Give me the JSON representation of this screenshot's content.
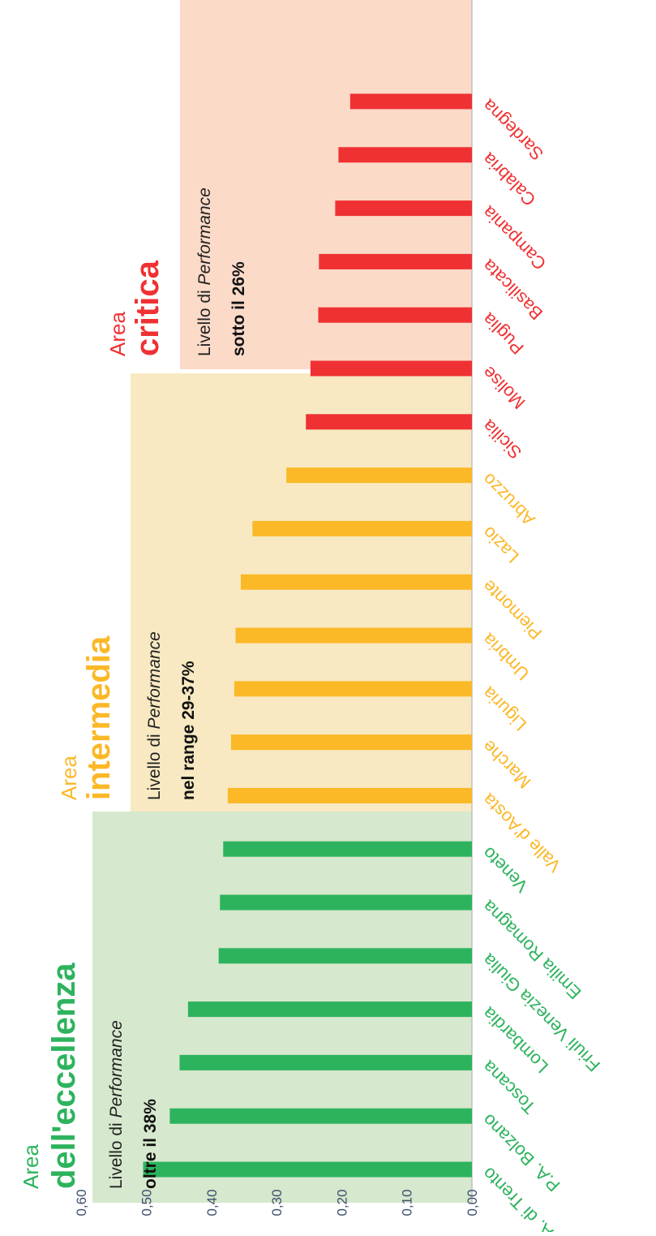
{
  "chart_data": {
    "type": "bar",
    "orientation": "rotated-90",
    "y_ticks": [
      "0,00",
      "0,10",
      "0,20",
      "0,30",
      "0,40",
      "0,50",
      "0,60"
    ],
    "ylim": [
      0,
      0.6
    ],
    "grid": false,
    "categories": [
      "P.A. di Trento",
      "P.A. Bolzano",
      "Toscana",
      "Lombardia",
      "Friuli Venezia Giulia",
      "Emilia Romagna",
      "Veneto",
      "Valle d'Aosta",
      "Marche",
      "Liguria",
      "Umbria",
      "Piemonte",
      "Lazio",
      "Abruzzo",
      "Sicilia",
      "Molise",
      "Puglia",
      "Basilicata",
      "Campania",
      "Calabria",
      "Sardegna"
    ],
    "values": [
      0.505,
      0.464,
      0.449,
      0.436,
      0.389,
      0.387,
      0.382,
      0.375,
      0.37,
      0.365,
      0.363,
      0.355,
      0.337,
      0.285,
      0.255,
      0.248,
      0.236,
      0.235,
      0.21,
      0.205,
      0.187
    ],
    "groups": [
      {
        "title_line1": "Area",
        "title_line2": "dell'eccellenza",
        "desc_line1": "Livello di",
        "desc_italic": "Performance",
        "desc_line2": "oltre il 38%",
        "color": "#2db35d",
        "bg_color": "#d6e8cd",
        "start": 0,
        "end": 7
      },
      {
        "title_line1": "Area",
        "title_line2": "intermedia",
        "desc_line1": "Livello di",
        "desc_italic": "Performance",
        "desc_line2": "nel range 29-37%",
        "color": "#fbb827",
        "bg_color": "#f8e9c2",
        "start": 7,
        "end": 14
      },
      {
        "title_line1": "Area",
        "title_line2": "critica",
        "desc_line1": "Livello di",
        "desc_italic": "Performance",
        "desc_line2": "sotto il 26%",
        "color": "#ef3133",
        "bg_color": "#fbdac8",
        "start": 14,
        "end": 21
      }
    ]
  }
}
